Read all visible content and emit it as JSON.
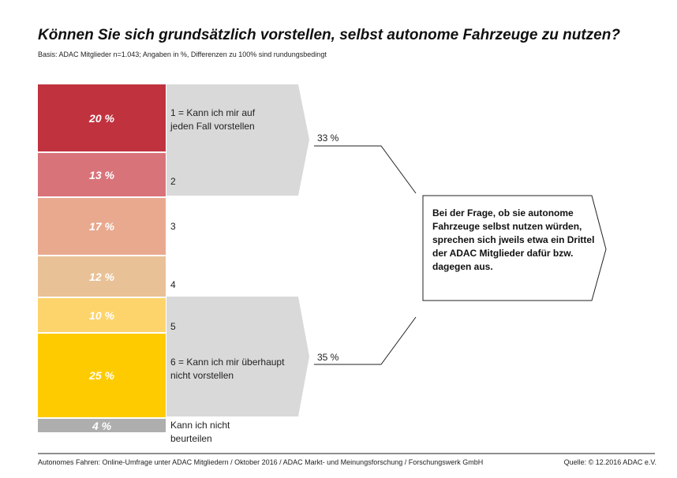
{
  "chart_data": {
    "type": "bar",
    "stacked": true,
    "title": "Können Sie sich grundsätzlich vorstellen, selbst autonome Fahrzeuge zu nutzen?",
    "subtitle": "Basis: ADAC Mitglieder n=1.043; Angaben in %, Differenzen zu 100% sind rundungsbedingt",
    "categories": [
      "1 = Kann ich mir auf jeden Fall vorstellen",
      "2",
      "3",
      "4",
      "5",
      "6 = Kann ich mir überhaupt nicht vorstellen",
      "Kann ich nicht beurteilen"
    ],
    "values": [
      20,
      13,
      17,
      12,
      10,
      25,
      4
    ],
    "value_labels": [
      "20 %",
      "13 %",
      "17 %",
      "12 %",
      "10 %",
      "25 %",
      "4 %"
    ],
    "colors": [
      "#c1323f",
      "#d9737a",
      "#e9a98f",
      "#e9c196",
      "#fdd46c",
      "#fecb00",
      "#aeaeae"
    ],
    "groups": [
      {
        "range": "1-2",
        "label": "33 %"
      },
      {
        "range": "5-6",
        "label": "35 %"
      }
    ],
    "annotation": "Bei der Frage, ob sie autonome Fahrzeuge selbst nutzen würden, sprechen sich jweils etwa ein Drittel der ADAC Mitglieder dafür bzw. dagegen aus."
  },
  "footer": {
    "left": "Autonomes Fahren: Online-Umfrage unter ADAC Mitgliedern / Oktober 2016 / ADAC Markt- und Meinungsforschung / Forschungswerk GmbH",
    "right": "Quelle: © 12.2016 ADAC e.V."
  }
}
